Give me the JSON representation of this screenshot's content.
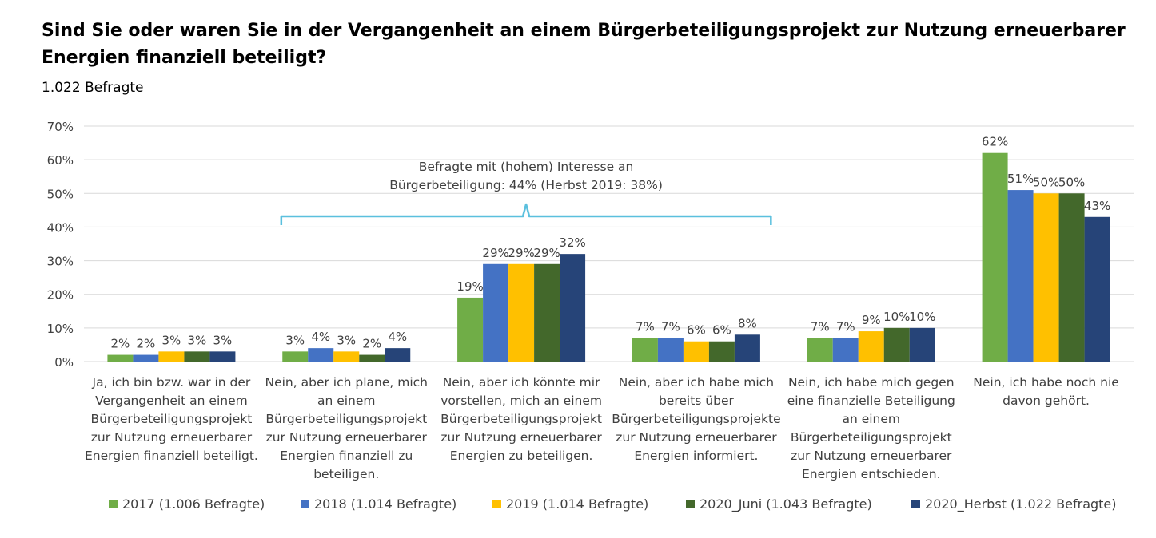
{
  "chart_data": {
    "type": "bar",
    "title": "Sind Sie oder waren Sie in der Vergangenheit an einem Bürgerbeteiligungsprojekt zur Nutzung erneuerbarer Energien finanziell beteiligt?",
    "subtitle": "1.022 Befragte",
    "ylim": [
      0,
      70
    ],
    "yticks": [
      "0%",
      "10%",
      "20%",
      "30%",
      "40%",
      "50%",
      "60%",
      "70%"
    ],
    "grid": true,
    "legend_position": "bottom",
    "categories": [
      [
        "Ja, ich bin bzw. war in der",
        "Vergangenheit an einem",
        "Bürgerbeteiligungsprojekt",
        "zur Nutzung erneuerbarer",
        "Energien finanziell beteiligt."
      ],
      [
        "Nein, aber ich plane, mich",
        "an einem",
        "Bürgerbeteiligungsprojekt",
        "zur Nutzung erneuerbarer",
        "Energien finanziell zu",
        "beteiligen."
      ],
      [
        "Nein, aber ich könnte mir",
        "vorstellen, mich an einem",
        "Bürgerbeteiligungsprojekt",
        "zur Nutzung erneuerbarer",
        "Energien zu beteiligen."
      ],
      [
        "Nein, aber ich habe mich",
        "bereits über",
        "Bürgerbeteiligungsprojekte",
        "zur Nutzung erneuerbarer",
        "Energien informiert."
      ],
      [
        "Nein, ich habe mich gegen",
        "eine finanzielle Beteiligung",
        "an einem",
        "Bürgerbeteiligungsprojekt",
        "zur Nutzung erneuerbarer",
        "Energien entschieden."
      ],
      [
        "Nein, ich habe noch nie",
        "davon gehört."
      ]
    ],
    "series": [
      {
        "name": "2017 (1.006 Befragte)",
        "color": "#70ad47",
        "values": [
          2,
          3,
          19,
          7,
          7,
          62
        ]
      },
      {
        "name": "2018 (1.014 Befragte)",
        "color": "#4472c4",
        "values": [
          2,
          4,
          29,
          7,
          7,
          51
        ]
      },
      {
        "name": "2019 (1.014 Befragte)",
        "color": "#ffc000",
        "values": [
          3,
          3,
          29,
          6,
          9,
          50
        ]
      },
      {
        "name": "2020_Juni (1.043 Befragte)",
        "color": "#43682b",
        "values": [
          3,
          2,
          29,
          6,
          10,
          50
        ]
      },
      {
        "name": "2020_Herbst (1.022 Befragte)",
        "color": "#264478",
        "values": [
          3,
          4,
          32,
          8,
          10,
          43
        ]
      }
    ],
    "annotation": {
      "lines": [
        "Befragte mit (hohem) Interesse an",
        "Bürgerbeteiligung: 44% (Herbst 2019: 38%)"
      ],
      "bracket_color": "#5bc0de",
      "spans_categories": [
        1,
        3
      ]
    }
  }
}
